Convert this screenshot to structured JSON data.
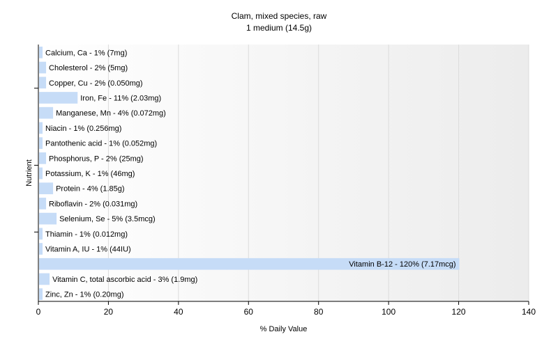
{
  "chart_data": {
    "type": "bar",
    "orientation": "horizontal",
    "title": "Clam, mixed species, raw",
    "subtitle": "1 medium (14.5g)",
    "xlabel": "% Daily Value",
    "ylabel": "Nutrient",
    "xlim": [
      0,
      140
    ],
    "x_ticks": [
      "0",
      "20",
      "40",
      "60",
      "80",
      "100",
      "120",
      "140"
    ],
    "grid": true,
    "bar_color": "#c6dcf7",
    "categories": [
      "Calcium, Ca",
      "Cholesterol",
      "Copper, Cu",
      "Iron, Fe",
      "Manganese, Mn",
      "Niacin",
      "Pantothenic acid",
      "Phosphorus, P",
      "Potassium, K",
      "Protein",
      "Riboflavin",
      "Selenium, Se",
      "Thiamin",
      "Vitamin A, IU",
      "Vitamin B-12",
      "Vitamin C, total ascorbic acid",
      "Zinc, Zn"
    ],
    "values": [
      1,
      2,
      2,
      11,
      4,
      1,
      1,
      2,
      1,
      4,
      2,
      5,
      1,
      1,
      120,
      3,
      1
    ],
    "labels": [
      "Calcium, Ca - 1% (7mg)",
      "Cholesterol - 2% (5mg)",
      "Copper, Cu - 2% (0.050mg)",
      "Iron, Fe - 11% (2.03mg)",
      "Manganese, Mn - 4% (0.072mg)",
      "Niacin - 1% (0.256mg)",
      "Pantothenic acid - 1% (0.052mg)",
      "Phosphorus, P - 2% (25mg)",
      "Potassium, K - 1% (46mg)",
      "Protein - 4% (1.85g)",
      "Riboflavin - 2% (0.031mg)",
      "Selenium, Se - 5% (3.5mcg)",
      "Thiamin - 1% (0.012mg)",
      "Vitamin A, IU - 1% (44IU)",
      "Vitamin B-12 - 120% (7.17mcg)",
      "Vitamin C, total ascorbic acid - 3% (1.9mg)",
      "Zinc, Zn - 1% (0.20mg)"
    ]
  }
}
